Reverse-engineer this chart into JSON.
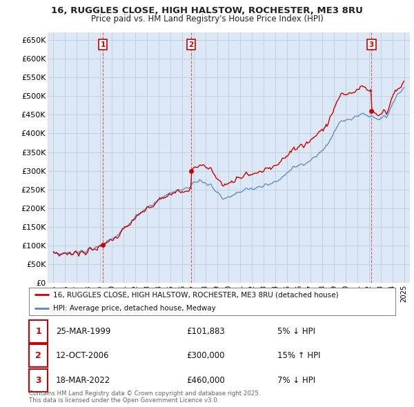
{
  "title_line1": "16, RUGGLES CLOSE, HIGH HALSTOW, ROCHESTER, ME3 8RU",
  "title_line2": "Price paid vs. HM Land Registry's House Price Index (HPI)",
  "property_label": "16, RUGGLES CLOSE, HIGH HALSTOW, ROCHESTER, ME3 8RU (detached house)",
  "hpi_label": "HPI: Average price, detached house, Medway",
  "property_color": "#cc0000",
  "hpi_color": "#5588bb",
  "chart_bg": "#dce8f5",
  "background_color": "#ffffff",
  "grid_color": "#bbccdd",
  "ylim": [
    0,
    670000
  ],
  "yticks": [
    0,
    50000,
    100000,
    150000,
    200000,
    250000,
    300000,
    350000,
    400000,
    450000,
    500000,
    550000,
    600000,
    650000
  ],
  "sale_years": [
    1999.23,
    2006.78,
    2022.21
  ],
  "sale_prices": [
    101883,
    300000,
    460000
  ],
  "sale_nums": [
    1,
    2,
    3
  ],
  "sale_dates": [
    "25-MAR-1999",
    "12-OCT-2006",
    "18-MAR-2022"
  ],
  "sale_pcts": [
    "5% ↓ HPI",
    "15% ↑ HPI",
    "7% ↓ HPI"
  ],
  "footer": "Contains HM Land Registry data © Crown copyright and database right 2025.\nThis data is licensed under the Open Government Licence v3.0."
}
